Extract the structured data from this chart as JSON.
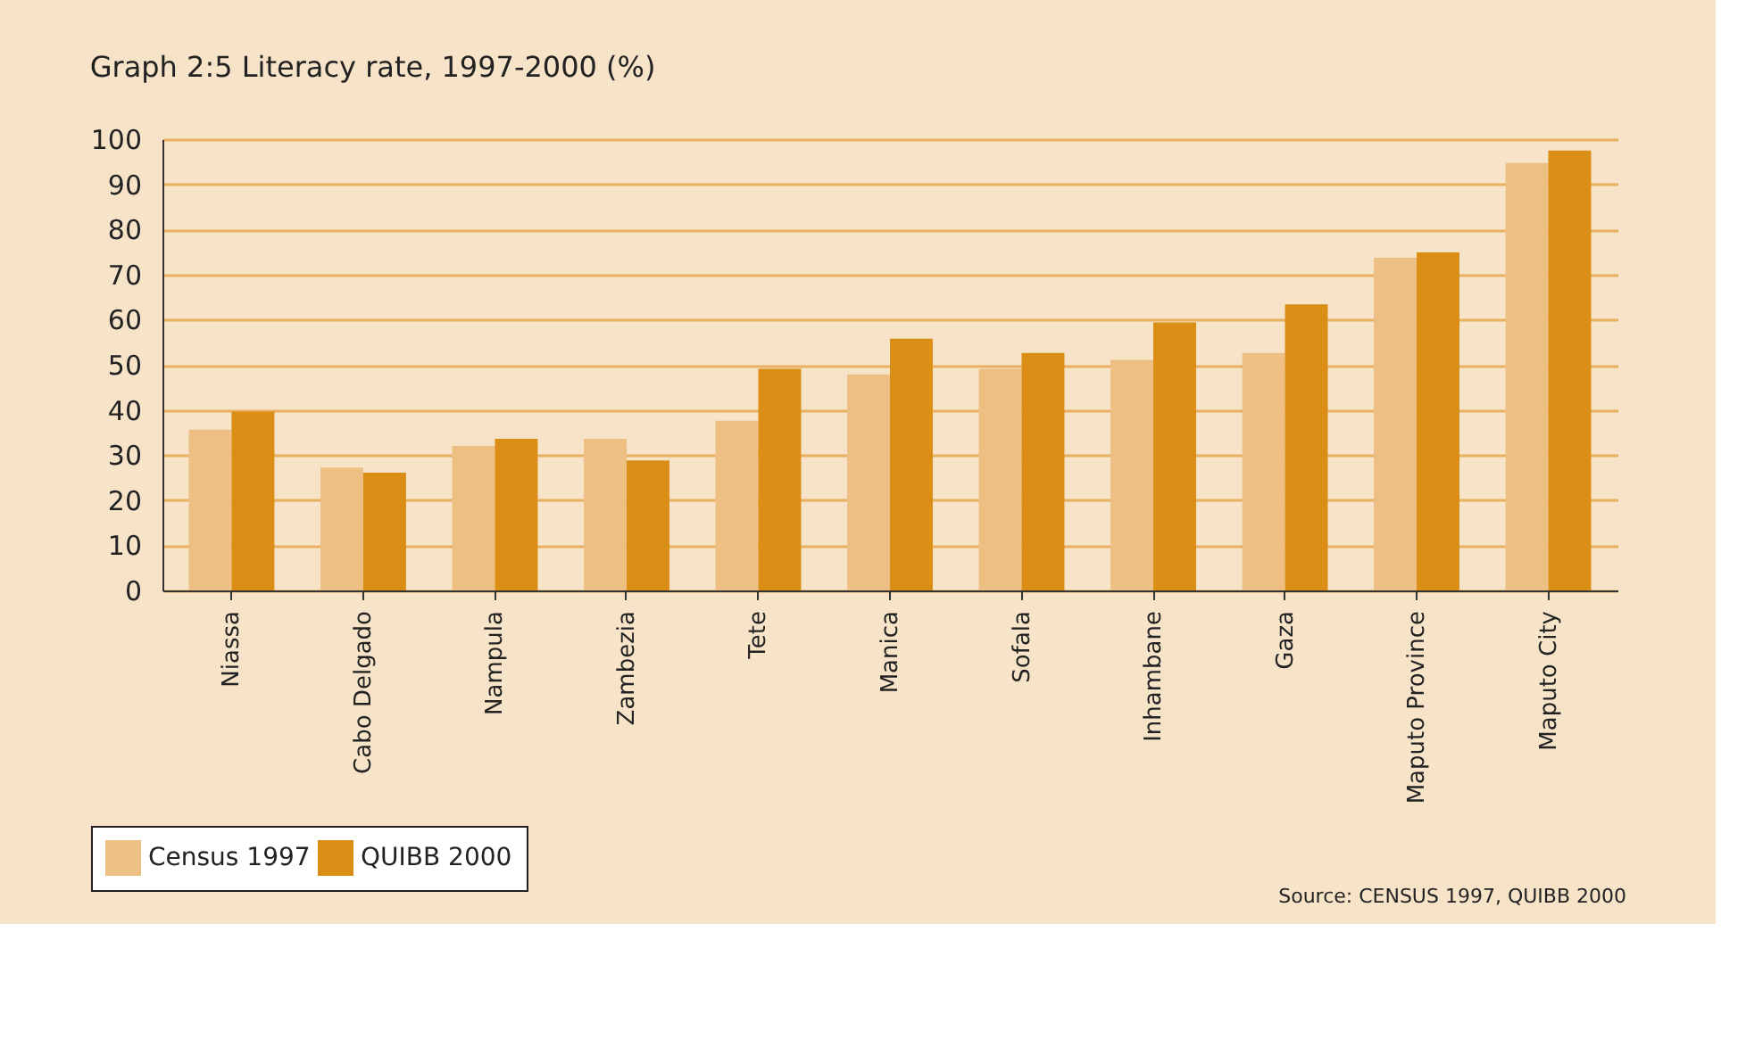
{
  "chart_data": {
    "type": "bar",
    "title": "Graph 2:5 Literacy rate, 1997-2000 (%)",
    "categories": [
      "Niassa",
      "Cabo Delgado",
      "Nampula",
      "Zambezia",
      "Tete",
      "Manica",
      "Sofala",
      "Inhambane",
      "Gaza",
      "Maputo Province",
      "Maputo City"
    ],
    "series": [
      {
        "name": "Census 1997",
        "color": "#edbf83",
        "values": [
          35.6,
          27.2,
          32.0,
          33.6,
          37.6,
          47.9,
          49.1,
          51.1,
          52.6,
          73.7,
          94.7
        ]
      },
      {
        "name": "QUIBB 2000",
        "color": "#db8e15",
        "values": [
          39.6,
          26.1,
          33.6,
          28.8,
          49.1,
          55.8,
          52.6,
          59.4,
          63.4,
          74.9,
          97.5
        ]
      }
    ],
    "ylim": [
      0,
      100
    ],
    "yticks": [
      0,
      10,
      20,
      30,
      40,
      50,
      60,
      70,
      80,
      90,
      100
    ],
    "grid": "y",
    "legend": "bottom left",
    "annotations": [
      "Source: CENSUS 1997, QUIBB 2000"
    ]
  }
}
